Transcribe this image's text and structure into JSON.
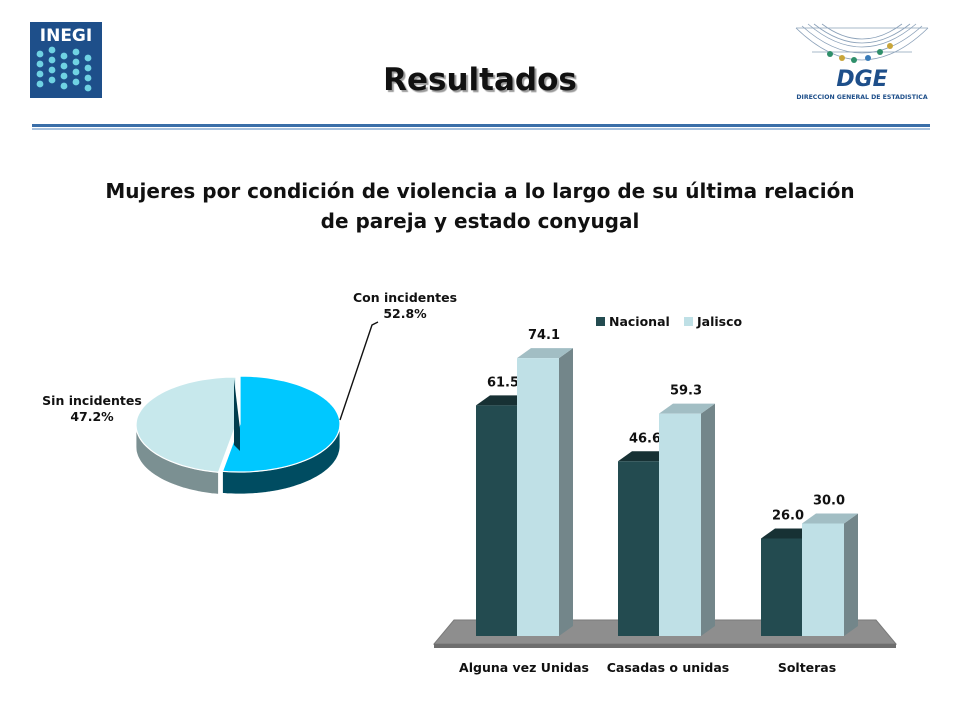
{
  "header": {
    "title": "Resultados",
    "logo_left_text": "INEGI",
    "logo_right_text": "DGE",
    "logo_right_subtext": "DIRECCION GENERAL DE ESTADISTICA"
  },
  "chart_title_line1": "Mujeres por condición de violencia a lo largo de su última relación",
  "chart_title_line2": "de pareja y estado conyugal",
  "colors": {
    "nacional": "#234b50",
    "jalisco": "#bfe0e6",
    "pie_con": "#00c8ff",
    "pie_sin": "#c7e8ec",
    "rule": "#3a6ea8"
  },
  "chart_data": [
    {
      "type": "pie",
      "slices": [
        {
          "label": "Con incidentes",
          "value": 52.8,
          "display": "52.8%"
        },
        {
          "label": "Sin incidentes",
          "value": 47.2,
          "display": "47.2%"
        }
      ]
    },
    {
      "type": "bar",
      "categories": [
        "Alguna vez Unidas",
        "Casadas o unidas",
        "Solteras"
      ],
      "series": [
        {
          "name": "Nacional",
          "values": [
            61.5,
            46.6,
            26.0
          ],
          "labels": [
            "61.5",
            "46.6",
            "26.0"
          ]
        },
        {
          "name": "Jalisco",
          "values": [
            74.1,
            59.3,
            30.0
          ],
          "labels": [
            "74.1",
            "59.3",
            "30.0"
          ]
        }
      ],
      "ylim": [
        0,
        80
      ],
      "legend": "top",
      "grid": false
    }
  ]
}
